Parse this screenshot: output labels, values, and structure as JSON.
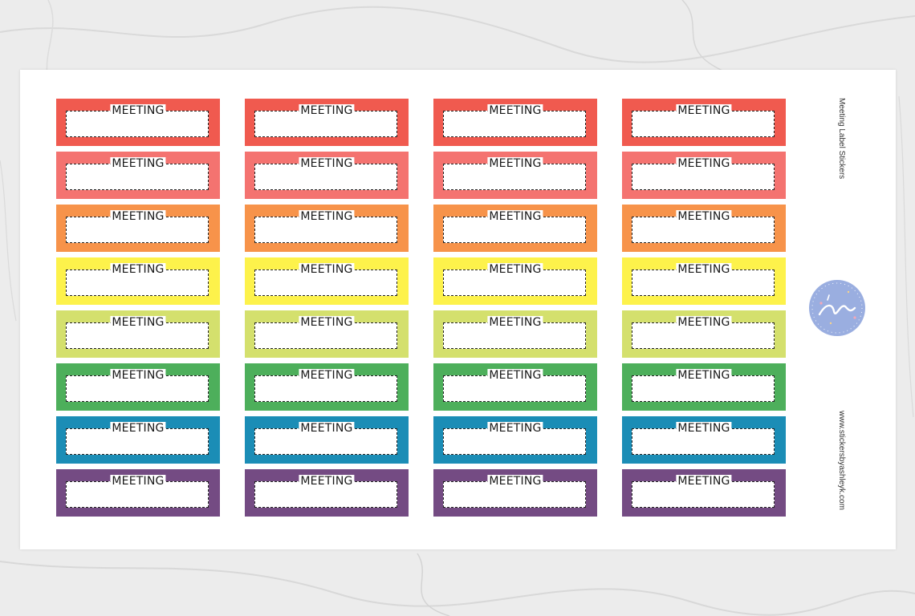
{
  "sheet": {
    "sticker_word": "MEETING",
    "title": "Meeting Label Stickers",
    "website": "www.stickersbyashleyk.com",
    "logo_text": "by AshleyK",
    "columns": 4,
    "row_colors": [
      "#f05a4f",
      "#f47370",
      "#f7934a",
      "#fdf24b",
      "#d4e06d",
      "#4daf5b",
      "#1b8db6",
      "#744b83"
    ],
    "logo_color": "#9aaee0"
  }
}
